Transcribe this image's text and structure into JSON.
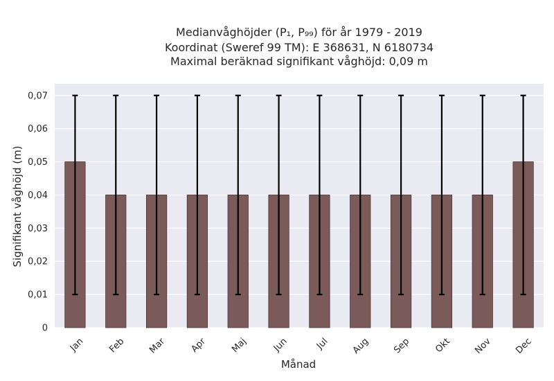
{
  "chart_data": {
    "type": "bar",
    "title_lines": [
      "Medianvåghöjder (P₁, P₉₉) för år 1979 - 2019",
      "Koordinat (Sweref 99 TM): E 368631, N 6180734",
      "Maximal beräknad signifikant våghöjd: 0,09 m"
    ],
    "xlabel": "Månad",
    "ylabel": "Signifikant våghöjd (m)",
    "categories": [
      "Jan",
      "Feb",
      "Mar",
      "Apr",
      "Maj",
      "Jun",
      "Jul",
      "Aug",
      "Sep",
      "Okt",
      "Nov",
      "Dec"
    ],
    "values": [
      0.05,
      0.04,
      0.04,
      0.04,
      0.04,
      0.04,
      0.04,
      0.04,
      0.04,
      0.04,
      0.04,
      0.05
    ],
    "error_low": [
      0.01,
      0.01,
      0.01,
      0.01,
      0.01,
      0.01,
      0.01,
      0.01,
      0.01,
      0.01,
      0.01,
      0.01
    ],
    "error_high": [
      0.07,
      0.07,
      0.07,
      0.07,
      0.07,
      0.07,
      0.07,
      0.07,
      0.07,
      0.07,
      0.07,
      0.07
    ],
    "ylim": [
      0,
      0.0735
    ],
    "yticks": [
      0,
      0.01,
      0.02,
      0.03,
      0.04,
      0.05,
      0.06,
      0.07
    ],
    "ytick_labels": [
      "0",
      "0,01",
      "0,02",
      "0,03",
      "0,04",
      "0,05",
      "0,06",
      "0,07"
    ],
    "grid": true,
    "colors": {
      "plot_background": "#eaeaf2",
      "bar": "#7b5a5a",
      "bar_edge": "#4a3535",
      "error_bar": "#000000",
      "grid": "#ffffff"
    }
  }
}
